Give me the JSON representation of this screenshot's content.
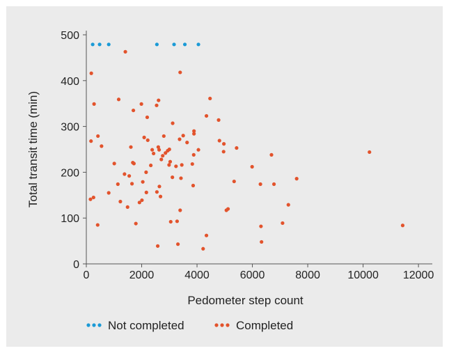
{
  "colors": {
    "background": "#ebebeb",
    "not_completed": "#1b9ad6",
    "completed": "#e2532c",
    "axis": "#555555"
  },
  "legend": {
    "not_completed_label": "Not completed",
    "completed_label": "Completed"
  },
  "chart_data": {
    "type": "scatter",
    "title": "",
    "xlabel": "Pedometer step count",
    "ylabel": "Total transit time (min)",
    "xlim": [
      0,
      12500
    ],
    "ylim": [
      0,
      500
    ],
    "xticks": [
      0,
      2000,
      4000,
      6000,
      8000,
      10000,
      12000
    ],
    "yticks": [
      0,
      100,
      200,
      300,
      400,
      500
    ],
    "grid": false,
    "legend_position": "bottom",
    "series": [
      {
        "name": "Not completed",
        "color": "#1b9ad6",
        "points": [
          [
            230,
            479
          ],
          [
            480,
            479
          ],
          [
            810,
            479
          ],
          [
            2550,
            479
          ],
          [
            3170,
            479
          ],
          [
            3560,
            479
          ],
          [
            4050,
            479
          ]
        ]
      },
      {
        "name": "Completed",
        "color": "#e2532c",
        "points": [
          [
            180,
            416
          ],
          [
            280,
            349
          ],
          [
            1410,
            463
          ],
          [
            3390,
            418
          ],
          [
            4470,
            361
          ],
          [
            170,
            268
          ],
          [
            420,
            279
          ],
          [
            550,
            257
          ],
          [
            1010,
            219
          ],
          [
            1170,
            359
          ],
          [
            1700,
            335
          ],
          [
            1990,
            349
          ],
          [
            2200,
            320
          ],
          [
            2610,
            357
          ],
          [
            2540,
            346
          ],
          [
            3120,
            307
          ],
          [
            3890,
            290
          ],
          [
            3890,
            284
          ],
          [
            4340,
            323
          ],
          [
            4780,
            314
          ],
          [
            4810,
            269
          ],
          [
            4970,
            262
          ],
          [
            4960,
            245
          ],
          [
            5430,
            253
          ],
          [
            6690,
            238
          ],
          [
            5990,
            212
          ],
          [
            10230,
            244
          ],
          [
            1610,
            255
          ],
          [
            1680,
            221
          ],
          [
            1720,
            219
          ],
          [
            2090,
            276
          ],
          [
            2220,
            270
          ],
          [
            2380,
            249
          ],
          [
            2430,
            241
          ],
          [
            2600,
            255
          ],
          [
            2630,
            249
          ],
          [
            2710,
            228
          ],
          [
            2760,
            236
          ],
          [
            2800,
            279
          ],
          [
            2860,
            242
          ],
          [
            2940,
            247
          ],
          [
            3000,
            250
          ],
          [
            3030,
            223
          ],
          [
            2990,
            216
          ],
          [
            3240,
            213
          ],
          [
            3370,
            272
          ],
          [
            3500,
            280
          ],
          [
            3640,
            265
          ],
          [
            3450,
            216
          ],
          [
            4050,
            249
          ],
          [
            3830,
            218
          ],
          [
            3880,
            238
          ],
          [
            2330,
            215
          ],
          [
            150,
            141
          ],
          [
            260,
            145
          ],
          [
            410,
            85
          ],
          [
            810,
            155
          ],
          [
            1140,
            174
          ],
          [
            1230,
            136
          ],
          [
            1380,
            196
          ],
          [
            1490,
            124
          ],
          [
            1550,
            192
          ],
          [
            1650,
            175
          ],
          [
            1790,
            88
          ],
          [
            1920,
            134
          ],
          [
            2010,
            139
          ],
          [
            2040,
            179
          ],
          [
            2160,
            200
          ],
          [
            2170,
            156
          ],
          [
            2550,
            157
          ],
          [
            2640,
            169
          ],
          [
            2680,
            147
          ],
          [
            3110,
            189
          ],
          [
            3050,
            92
          ],
          [
            3280,
            93
          ],
          [
            3420,
            187
          ],
          [
            3390,
            117
          ],
          [
            3860,
            171
          ],
          [
            5060,
            117
          ],
          [
            5120,
            120
          ],
          [
            5340,
            180
          ],
          [
            6290,
            174
          ],
          [
            6310,
            82
          ],
          [
            6330,
            48
          ],
          [
            6780,
            174
          ],
          [
            7090,
            89
          ],
          [
            7300,
            129
          ],
          [
            7600,
            186
          ],
          [
            11430,
            84
          ],
          [
            2580,
            39
          ],
          [
            3310,
            43
          ],
          [
            4220,
            33
          ],
          [
            4340,
            62
          ]
        ]
      }
    ]
  }
}
